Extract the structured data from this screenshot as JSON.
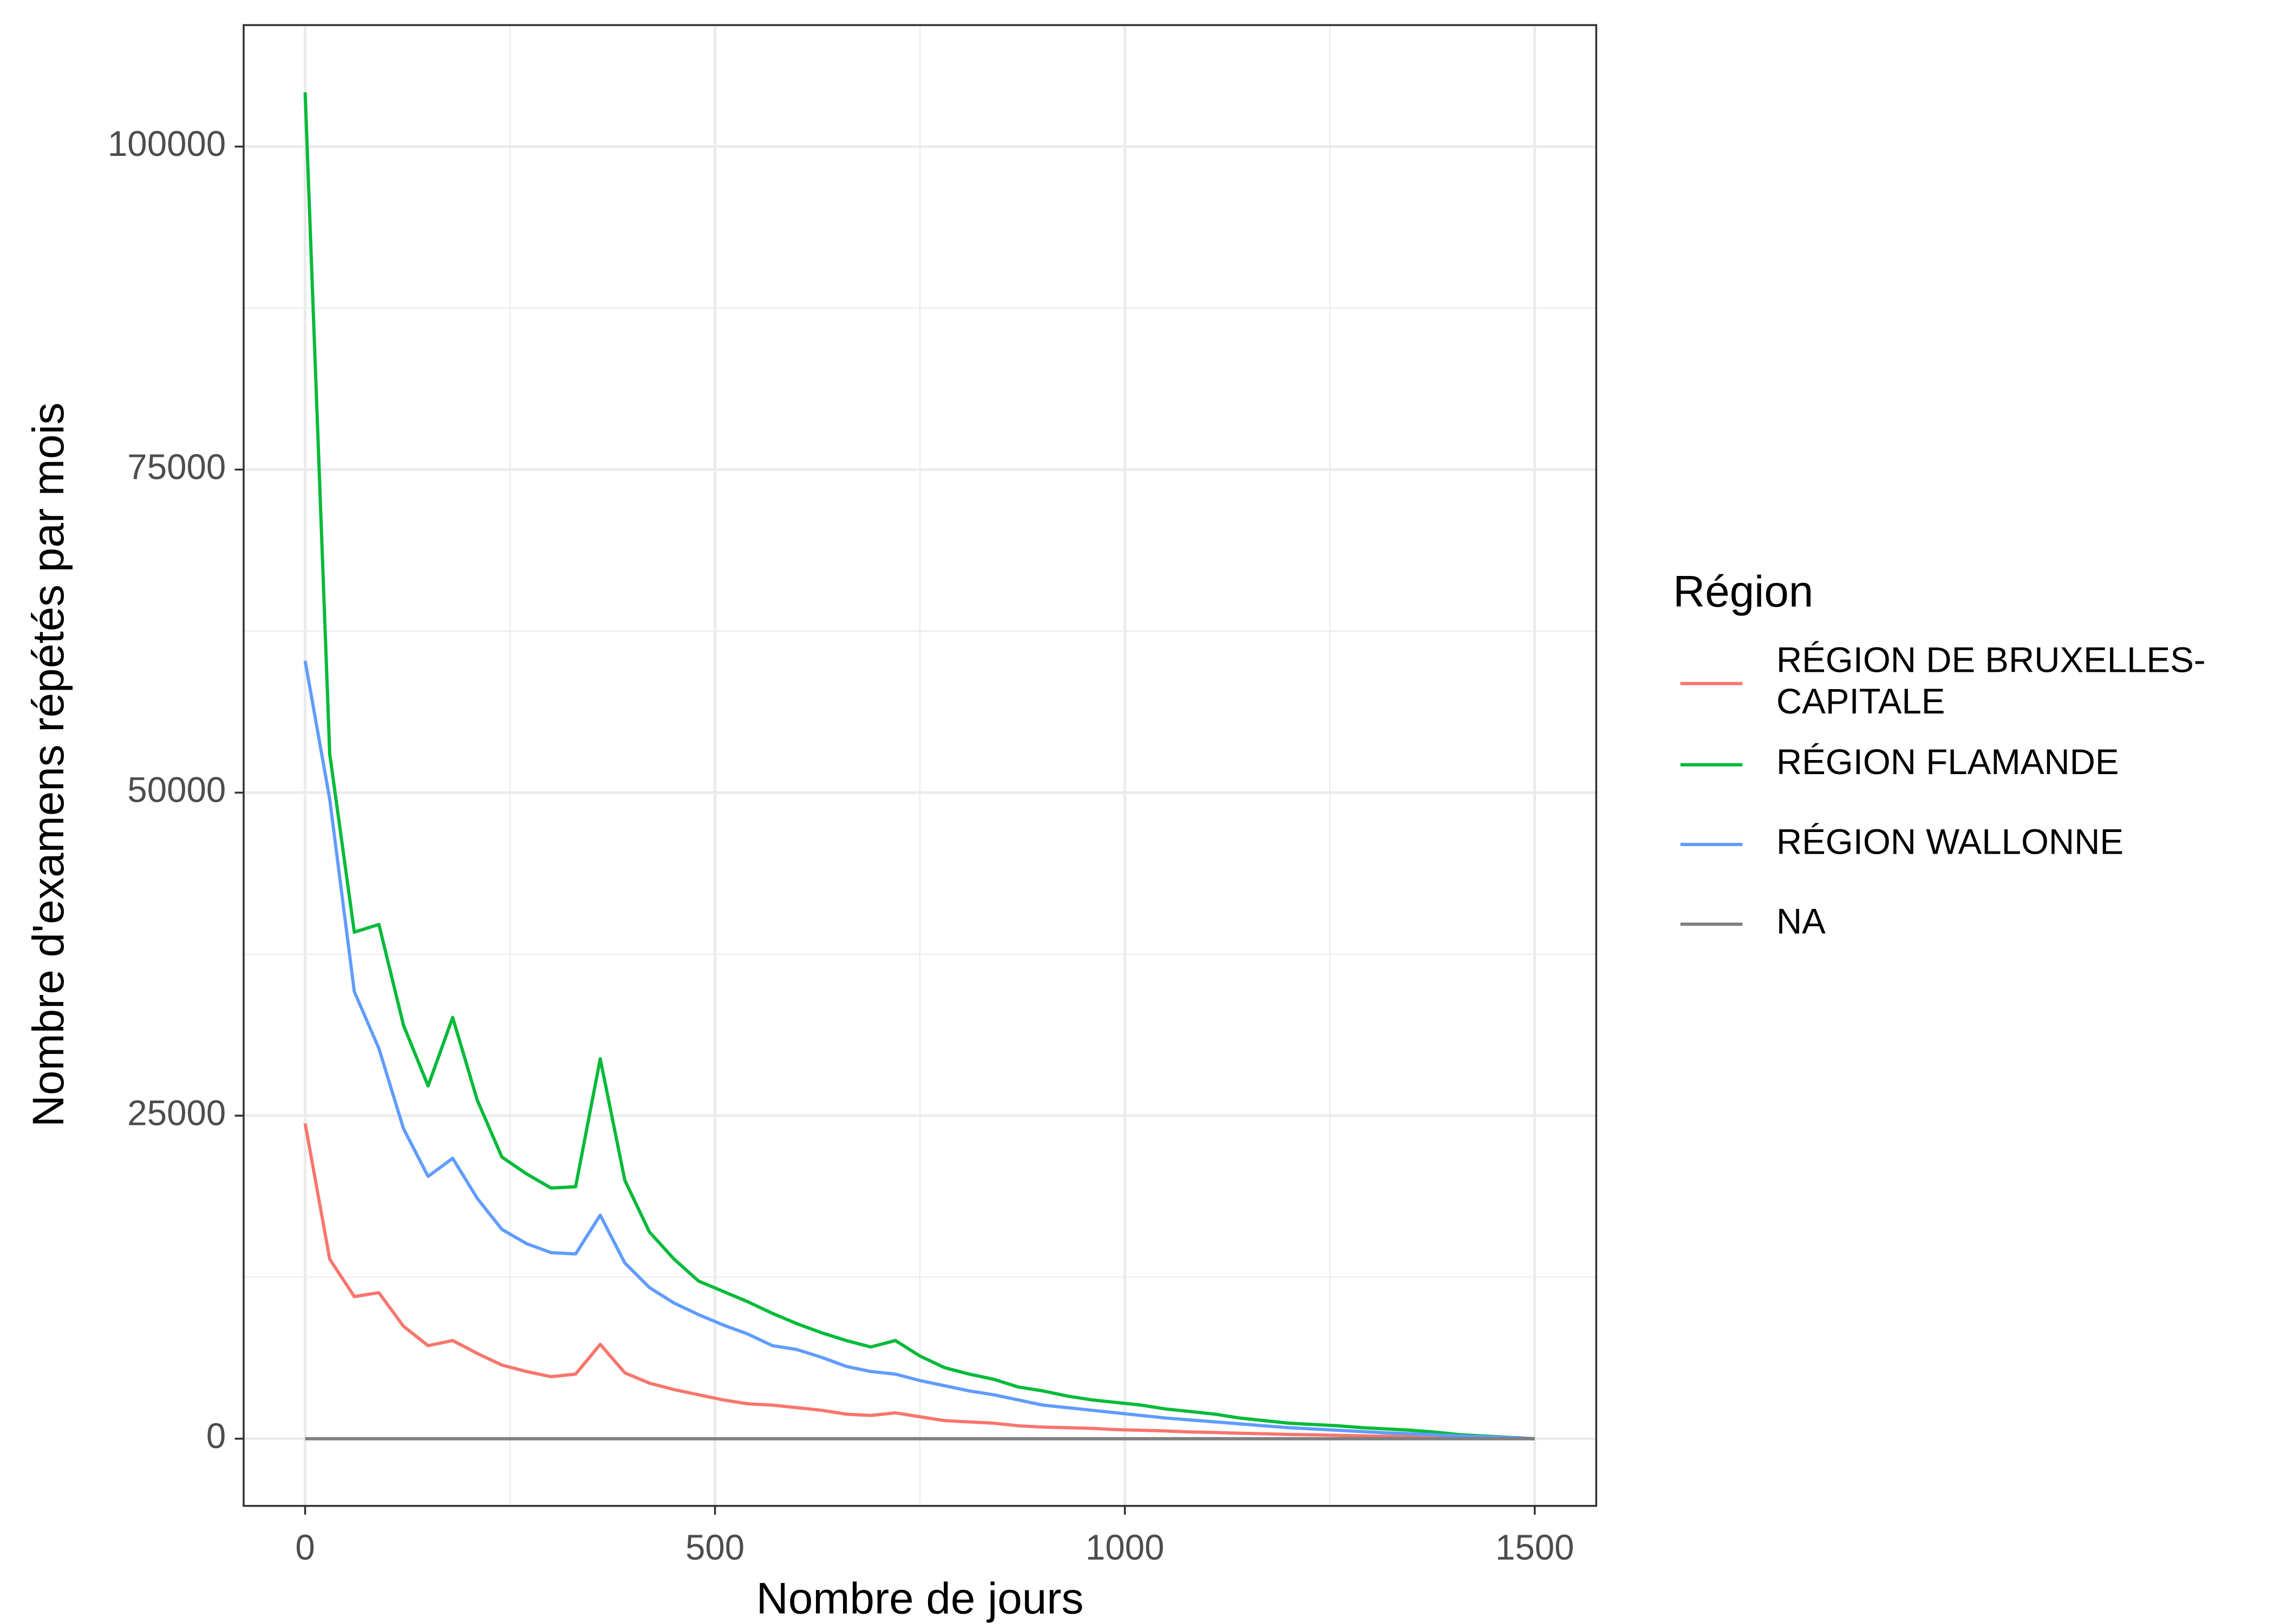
{
  "chart_data": {
    "type": "line",
    "x_label": "Nombre de jours",
    "y_label": "Nombre d'examens répétés par mois",
    "legend_title": "Région",
    "legend_position": "right",
    "grid": true,
    "xlim": [
      -75,
      1575
    ],
    "ylim": [
      -5200,
      109400
    ],
    "xticks": [
      0,
      500,
      1000,
      1500
    ],
    "yticks": [
      0,
      25000,
      50000,
      75000,
      100000
    ],
    "x_minor_grid": [
      250,
      750,
      1250
    ],
    "y_minor_grid": [
      12500,
      37500,
      62500,
      87500
    ],
    "x": [
      0,
      30,
      60,
      90,
      120,
      150,
      180,
      210,
      240,
      270,
      300,
      330,
      360,
      390,
      420,
      450,
      480,
      510,
      540,
      570,
      600,
      630,
      660,
      690,
      720,
      750,
      780,
      810,
      840,
      870,
      900,
      930,
      960,
      990,
      1020,
      1050,
      1080,
      1110,
      1140,
      1170,
      1200,
      1230,
      1260,
      1290,
      1320,
      1350,
      1380,
      1410,
      1440,
      1470,
      1500
    ],
    "series": [
      {
        "name": "RÉGION DE BRUXELLES-CAPITALE",
        "color": "#f8766d",
        "values": [
          24400,
          13900,
          11000,
          11300,
          8700,
          7200,
          7600,
          6600,
          5700,
          5200,
          4800,
          5000,
          7300,
          5100,
          4300,
          3800,
          3400,
          3000,
          2700,
          2600,
          2400,
          2200,
          1900,
          1800,
          2000,
          1700,
          1400,
          1300,
          1200,
          1000,
          900,
          850,
          800,
          700,
          650,
          600,
          520,
          480,
          420,
          380,
          330,
          300,
          260,
          220,
          180,
          150,
          120,
          90,
          60,
          30,
          0
        ]
      },
      {
        "name": "RÉGION FLAMANDE",
        "color": "#00ba38",
        "values": [
          104200,
          53000,
          39200,
          39800,
          32000,
          27300,
          32600,
          26200,
          21800,
          20500,
          19400,
          19500,
          29400,
          20000,
          16000,
          13900,
          12200,
          11400,
          10600,
          9700,
          8900,
          8200,
          7600,
          7100,
          7600,
          6400,
          5500,
          5000,
          4600,
          4000,
          3700,
          3300,
          3000,
          2800,
          2600,
          2300,
          2100,
          1900,
          1600,
          1400,
          1200,
          1100,
          1000,
          850,
          750,
          650,
          500,
          300,
          200,
          100,
          0
        ]
      },
      {
        "name": "RÉGION WALLONNE",
        "color": "#619cff",
        "values": [
          60200,
          49500,
          34600,
          30200,
          24000,
          20300,
          21700,
          18600,
          16200,
          15100,
          14400,
          14300,
          17300,
          13600,
          11700,
          10500,
          9600,
          8800,
          8100,
          7200,
          6900,
          6300,
          5600,
          5200,
          5000,
          4500,
          4100,
          3700,
          3400,
          3000,
          2600,
          2400,
          2200,
          2000,
          1800,
          1600,
          1450,
          1300,
          1150,
          1000,
          850,
          750,
          650,
          550,
          450,
          380,
          300,
          200,
          150,
          80,
          0
        ]
      },
      {
        "name": "NA",
        "color": "#7f7f7f",
        "values": [
          0,
          0,
          0,
          0,
          0,
          0,
          0,
          0,
          0,
          0,
          0,
          0,
          0,
          0,
          0,
          0,
          0,
          0,
          0,
          0,
          0,
          0,
          0,
          0,
          0,
          0,
          0,
          0,
          0,
          0,
          0,
          0,
          0,
          0,
          0,
          0,
          0,
          0,
          0,
          0,
          0,
          0,
          0,
          0,
          0,
          0,
          0,
          0,
          0,
          0,
          0
        ]
      }
    ]
  }
}
